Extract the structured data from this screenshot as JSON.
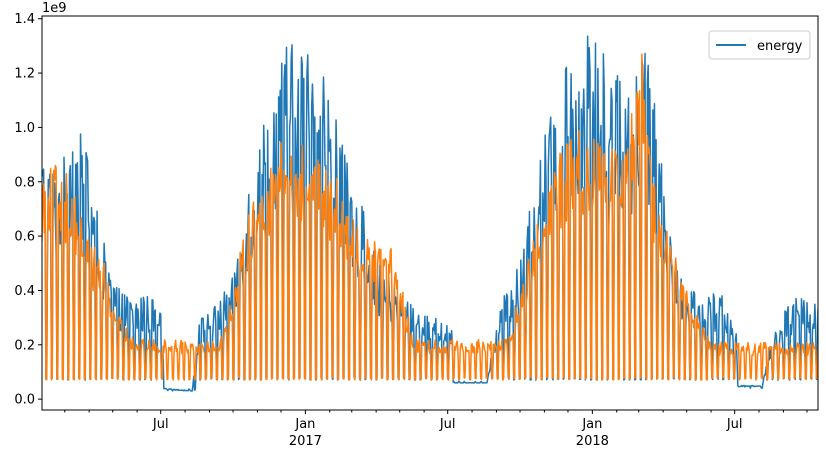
{
  "chart_data": {
    "type": "line",
    "title": "",
    "xlabel": "",
    "ylabel": "",
    "y_offset_label": "1e9",
    "x_range": [
      "2016-02-01",
      "2018-10-15"
    ],
    "ylim": [
      -0.04,
      1.41
    ],
    "y_ticks": [
      {
        "value": 0.0,
        "label": "0.0"
      },
      {
        "value": 0.2,
        "label": "0.2"
      },
      {
        "value": 0.4,
        "label": "0.4"
      },
      {
        "value": 0.6,
        "label": "0.6"
      },
      {
        "value": 0.8,
        "label": "0.8"
      },
      {
        "value": 1.0,
        "label": "1.0"
      },
      {
        "value": 1.2,
        "label": "1.2"
      },
      {
        "value": 1.4,
        "label": "1.4"
      }
    ],
    "x_ticks": [
      {
        "date": "2016-07-01",
        "label": "Jul",
        "sublabel": ""
      },
      {
        "date": "2017-01-01",
        "label": "Jan",
        "sublabel": "2017"
      },
      {
        "date": "2017-07-01",
        "label": "Jul",
        "sublabel": ""
      },
      {
        "date": "2018-01-01",
        "label": "Jan",
        "sublabel": "2018"
      },
      {
        "date": "2018-07-01",
        "label": "Jul",
        "sublabel": ""
      }
    ],
    "minor_tick_dates": [
      "2016-03-01",
      "2016-04-01",
      "2016-05-01",
      "2016-06-01",
      "2016-08-01",
      "2016-09-01",
      "2016-10-01",
      "2016-11-01",
      "2016-12-01",
      "2017-02-01",
      "2017-03-01",
      "2017-04-01",
      "2017-05-01",
      "2017-06-01",
      "2017-08-01",
      "2017-09-01",
      "2017-10-01",
      "2017-11-01",
      "2017-12-01",
      "2018-02-01",
      "2018-03-01",
      "2018-04-01",
      "2018-05-01",
      "2018-06-01",
      "2018-08-01",
      "2018-09-01",
      "2018-10-01"
    ],
    "legend": {
      "placement": "top-right",
      "entries": [
        {
          "label": "energy",
          "color": "#1f77b4"
        }
      ]
    },
    "series": [
      {
        "name": "energy",
        "color": "#1f77b4",
        "daily": true,
        "points": [
          [
            "2016-02-01",
            0.93
          ],
          [
            "2016-02-20",
            0.85
          ],
          [
            "2016-03-10",
            1.05
          ],
          [
            "2016-03-25",
            0.95
          ],
          [
            "2016-04-10",
            0.72
          ],
          [
            "2016-04-25",
            0.5
          ],
          [
            "2016-05-10",
            0.4
          ],
          [
            "2016-05-25",
            0.38
          ],
          [
            "2016-06-10",
            0.38
          ],
          [
            "2016-06-25",
            0.37
          ],
          [
            "2016-07-03",
            0.3
          ],
          [
            "2016-07-05",
            0.04
          ],
          [
            "2016-08-10",
            0.03
          ],
          [
            "2016-08-20",
            0.3
          ],
          [
            "2016-09-10",
            0.35
          ],
          [
            "2016-10-01",
            0.45
          ],
          [
            "2016-10-20",
            0.8
          ],
          [
            "2016-11-10",
            1.05
          ],
          [
            "2016-12-01",
            1.28
          ],
          [
            "2016-12-20",
            1.32
          ],
          [
            "2017-01-10",
            1.3
          ],
          [
            "2017-02-01",
            1.12
          ],
          [
            "2017-02-20",
            0.9
          ],
          [
            "2017-03-15",
            0.7
          ],
          [
            "2017-04-05",
            0.5
          ],
          [
            "2017-04-25",
            0.42
          ],
          [
            "2017-05-20",
            0.33
          ],
          [
            "2017-06-15",
            0.3
          ],
          [
            "2017-07-05",
            0.3
          ],
          [
            "2017-07-10",
            0.06
          ],
          [
            "2017-08-20",
            0.06
          ],
          [
            "2017-09-05",
            0.35
          ],
          [
            "2017-10-01",
            0.5
          ],
          [
            "2017-10-25",
            0.88
          ],
          [
            "2017-11-15",
            1.12
          ],
          [
            "2017-12-10",
            1.3
          ],
          [
            "2017-12-28",
            1.34
          ],
          [
            "2018-01-20",
            1.28
          ],
          [
            "2018-02-15",
            1.1
          ],
          [
            "2018-03-10",
            1.28
          ],
          [
            "2018-04-01",
            0.9
          ],
          [
            "2018-04-20",
            0.45
          ],
          [
            "2018-05-15",
            0.4
          ],
          [
            "2018-06-15",
            0.38
          ],
          [
            "2018-07-03",
            0.3
          ],
          [
            "2018-07-05",
            0.05
          ],
          [
            "2018-08-05",
            0.05
          ],
          [
            "2018-08-15",
            0.2
          ],
          [
            "2018-09-10",
            0.37
          ],
          [
            "2018-10-15",
            0.37
          ]
        ],
        "base_points": [
          [
            "2016-02-01",
            0.07
          ],
          [
            "2016-07-04",
            0.07
          ],
          [
            "2016-07-05",
            0.03
          ],
          [
            "2016-08-15",
            0.03
          ],
          [
            "2016-08-16",
            0.07
          ],
          [
            "2017-07-05",
            0.07
          ],
          [
            "2017-07-06",
            0.06
          ],
          [
            "2017-08-25",
            0.06
          ],
          [
            "2017-08-26",
            0.07
          ],
          [
            "2018-07-04",
            0.07
          ],
          [
            "2018-07-05",
            0.04
          ],
          [
            "2018-08-10",
            0.04
          ],
          [
            "2018-08-11",
            0.07
          ],
          [
            "2018-10-15",
            0.07
          ]
        ]
      },
      {
        "name": "",
        "color": "#ff7f0e",
        "daily": true,
        "points": [
          [
            "2016-02-01",
            0.85
          ],
          [
            "2016-02-20",
            0.9
          ],
          [
            "2016-03-10",
            0.8
          ],
          [
            "2016-04-01",
            0.6
          ],
          [
            "2016-04-20",
            0.5
          ],
          [
            "2016-05-10",
            0.3
          ],
          [
            "2016-06-01",
            0.22
          ],
          [
            "2016-09-15",
            0.22
          ],
          [
            "2016-10-01",
            0.4
          ],
          [
            "2016-10-20",
            0.7
          ],
          [
            "2016-11-10",
            0.85
          ],
          [
            "2016-12-10",
            1.0
          ],
          [
            "2017-01-10",
            0.9
          ],
          [
            "2017-02-15",
            0.8
          ],
          [
            "2017-03-15",
            0.6
          ],
          [
            "2017-04-10",
            0.65
          ],
          [
            "2017-05-01",
            0.45
          ],
          [
            "2017-05-20",
            0.22
          ],
          [
            "2017-09-15",
            0.22
          ],
          [
            "2017-10-01",
            0.4
          ],
          [
            "2017-10-25",
            0.7
          ],
          [
            "2017-11-15",
            0.9
          ],
          [
            "2017-12-10",
            1.0
          ],
          [
            "2018-01-15",
            0.95
          ],
          [
            "2018-02-10",
            0.9
          ],
          [
            "2018-03-05",
            1.3
          ],
          [
            "2018-03-20",
            0.8
          ],
          [
            "2018-04-20",
            0.5
          ],
          [
            "2018-05-15",
            0.3
          ],
          [
            "2018-06-05",
            0.21
          ],
          [
            "2018-10-15",
            0.21
          ]
        ],
        "base_points": [
          [
            "2016-02-01",
            0.07
          ],
          [
            "2018-10-15",
            0.07
          ]
        ]
      }
    ]
  }
}
